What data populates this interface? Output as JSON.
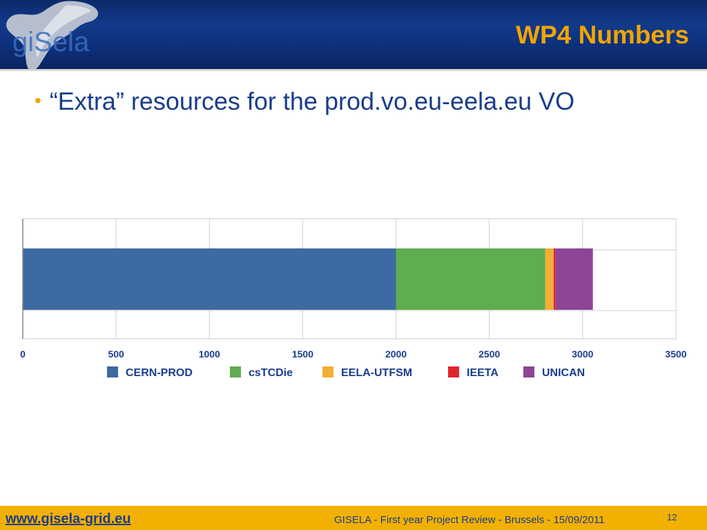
{
  "header": {
    "logo_text": "giSela",
    "title": "WP4 Numbers"
  },
  "body": {
    "bullet": "“Extra” resources for the prod.vo.eu-eela.eu VO"
  },
  "chart_data": {
    "type": "bar",
    "orientation": "horizontal",
    "stacked": true,
    "title": "",
    "xlabel": "",
    "ylabel": "",
    "xlim": [
      0,
      3500
    ],
    "xticks": [
      0,
      500,
      1000,
      1500,
      2000,
      2500,
      3000,
      3500
    ],
    "grid": true,
    "legend_position": "bottom",
    "series": [
      {
        "name": "CERN-PROD",
        "values": [
          2000
        ],
        "color": "#3d6aa3"
      },
      {
        "name": "csTCDie",
        "values": [
          800
        ],
        "color": "#5fad4e"
      },
      {
        "name": "EELA-UTFSM",
        "values": [
          45
        ],
        "color": "#f3ae35"
      },
      {
        "name": "IEETA",
        "values": [
          8
        ],
        "color": "#e0262c"
      },
      {
        "name": "UNICAN",
        "values": [
          202
        ],
        "color": "#8e4596"
      }
    ]
  },
  "footer": {
    "url": "www.gisela-grid.eu",
    "text": "GISELA - First year Project Review - Brussels - 15/09/2011",
    "page_number": "12"
  },
  "colors": {
    "header_bg": "#0e2f78",
    "title": "#f0a500",
    "text": "#1a3d8c",
    "footer_bg": "#f2b000"
  }
}
